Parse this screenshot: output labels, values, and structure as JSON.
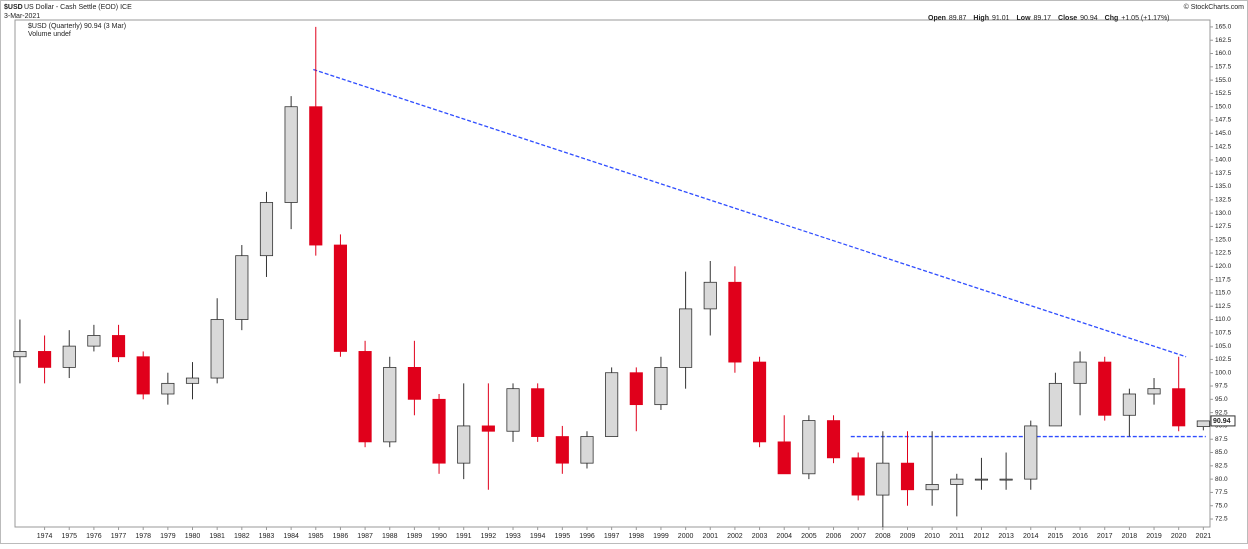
{
  "chart_data": {
    "type": "candlestick",
    "title": "$USD",
    "subtitle": "US Dollar - Cash Settle (EOD) ICE",
    "date": "3-Mar-2021",
    "legend_label": "$USD (Quarterly) 90.94 (3 Mar)",
    "volume_note": "Volume undef",
    "source": "© StockCharts.com",
    "quote_names": [
      "Open",
      "High",
      "Low",
      "Close",
      "Chg"
    ],
    "change": "+1.05 (+1.17%)",
    "x": [
      1973,
      1974,
      1975,
      1976,
      1977,
      1978,
      1979,
      1980,
      1981,
      1982,
      1983,
      1984,
      1985,
      1986,
      1987,
      1988,
      1989,
      1990,
      1991,
      1992,
      1993,
      1994,
      1995,
      1996,
      1997,
      1998,
      1999,
      2000,
      2001,
      2002,
      2003,
      2004,
      2005,
      2006,
      2007,
      2008,
      2009,
      2010,
      2011,
      2012,
      2013,
      2014,
      2015,
      2016,
      2017,
      2018,
      2019,
      2020,
      2021
    ],
    "open": [
      103,
      104,
      101,
      105,
      107,
      103,
      96,
      98,
      99,
      110,
      122,
      132,
      150,
      124,
      104,
      87,
      101,
      95,
      83,
      90,
      89,
      97,
      88,
      83,
      88,
      100,
      94,
      101,
      112,
      117,
      102,
      87,
      81,
      91,
      84,
      77,
      83,
      78,
      79,
      80,
      80,
      80,
      90,
      98,
      102,
      92,
      96,
      97,
      89.87
    ],
    "high": [
      110,
      107,
      108,
      109,
      109,
      104,
      100,
      102,
      114,
      124,
      134,
      152,
      165,
      126,
      106,
      103,
      106,
      96,
      98,
      98,
      98,
      98,
      90,
      89,
      101,
      101,
      103,
      119,
      121,
      120,
      103,
      92,
      92,
      92,
      85,
      89,
      89,
      89,
      81,
      84,
      85,
      91,
      100,
      104,
      103,
      97,
      99,
      103,
      91.01
    ],
    "low": [
      98,
      98,
      99,
      104,
      102,
      95,
      94,
      95,
      98,
      108,
      118,
      127,
      122,
      103,
      86,
      86,
      92,
      81,
      80,
      78,
      87,
      87,
      81,
      82,
      88,
      89,
      93,
      97,
      107,
      100,
      86,
      81,
      80,
      83,
      76,
      71,
      75,
      75,
      73,
      78,
      78,
      78,
      90,
      92,
      91,
      88,
      94,
      89,
      89.17
    ],
    "close": [
      104,
      101,
      105,
      107,
      103,
      96,
      98,
      99,
      110,
      122,
      132,
      150,
      124,
      104,
      87,
      101,
      95,
      83,
      90,
      89,
      97,
      88,
      83,
      88,
      100,
      94,
      101,
      112,
      117,
      102,
      87,
      81,
      91,
      84,
      77,
      83,
      78,
      79,
      80,
      80,
      80,
      90,
      98,
      102,
      92,
      96,
      97,
      90,
      90.94
    ],
    "up_color": "#d9d9d9",
    "down_color": "#e0001b",
    "trend_color": "#2f4dff",
    "trendlines": [
      {
        "x": [
          1984.9,
          2020.3
        ],
        "y": [
          157,
          103
        ]
      },
      {
        "x": [
          2006.7,
          2021.1
        ],
        "y": [
          88,
          88
        ]
      }
    ],
    "xlim": [
      1972.8,
      2021.27
    ],
    "xticks": [
      1974,
      1975,
      1976,
      1977,
      1978,
      1979,
      1980,
      1981,
      1982,
      1983,
      1984,
      1985,
      1986,
      1987,
      1988,
      1989,
      1990,
      1991,
      1992,
      1993,
      1994,
      1995,
      1996,
      1997,
      1998,
      1999,
      2000,
      2001,
      2002,
      2003,
      2004,
      2005,
      2006,
      2007,
      2008,
      2009,
      2010,
      2011,
      2012,
      2013,
      2014,
      2015,
      2016,
      2017,
      2018,
      2019,
      2020,
      2021
    ],
    "ylim": [
      71,
      166.3
    ],
    "yticks": [
      72.5,
      {
        "value": 75,
        "label": "75.0"
      },
      77.5,
      {
        "value": 80,
        "label": "80.0"
      },
      82.5,
      {
        "value": 85,
        "label": "85.0"
      },
      87.5,
      {
        "value": 90,
        "label": "90.0"
      },
      92.5,
      {
        "value": 95,
        "label": "95.0"
      },
      97.5,
      {
        "value": 100,
        "label": "100.0"
      },
      102.5,
      {
        "value": 105,
        "label": "105.0"
      },
      107.5,
      {
        "value": 110,
        "label": "110.0"
      },
      112.5,
      {
        "value": 115,
        "label": "115.0"
      },
      117.5,
      {
        "value": 120,
        "label": "120.0"
      },
      122.5,
      {
        "value": 125,
        "label": "125.0"
      },
      127.5,
      {
        "value": 130,
        "label": "130.0"
      },
      132.5,
      {
        "value": 135,
        "label": "135.0"
      },
      137.5,
      {
        "value": 140,
        "label": "140.0"
      },
      142.5,
      {
        "value": 145,
        "label": "145.0"
      },
      147.5,
      {
        "value": 150,
        "label": "150.0"
      },
      152.5,
      {
        "value": 155,
        "label": "155.0"
      },
      157.5,
      {
        "value": 160,
        "label": "160.0"
      },
      162.5,
      {
        "value": 165,
        "label": "165.0"
      }
    ]
  }
}
